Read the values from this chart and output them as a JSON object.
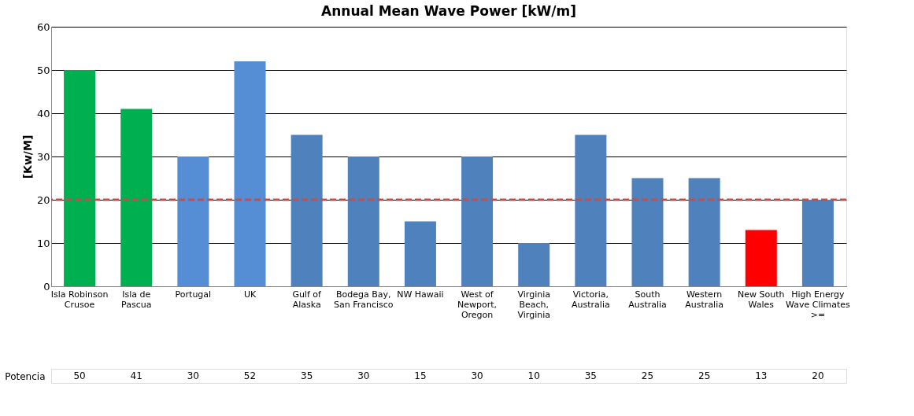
{
  "chart_data": {
    "type": "bar",
    "title": "Annual Mean Wave Power [kW/m]",
    "ylabel": "[Kw/M]",
    "categories": [
      "Isla Robinson Crusoe",
      "Isla de Pascua",
      "Portugal",
      "UK",
      "Gulf of Alaska",
      "Bodega Bay, San Francisco",
      "NW Hawaii",
      "West of Newport, Oregon",
      "Virginia Beach, Virginia",
      "Victoria, Australia",
      "South Australia",
      "Western Australia",
      "New South Wales",
      "High Energy Wave Climates >="
    ],
    "series": [
      {
        "name": "Potencia",
        "values": [
          50,
          41,
          30,
          52,
          35,
          30,
          15,
          30,
          10,
          35,
          25,
          25,
          13,
          20
        ],
        "colors": [
          "#00b050",
          "#00b050",
          "#558ed5",
          "#558ed5",
          "#4f81bd",
          "#4f81bd",
          "#4f81bd",
          "#4f81bd",
          "#4f81bd",
          "#4f81bd",
          "#4f81bd",
          "#4f81bd",
          "#ff0000",
          "#4f81bd"
        ]
      }
    ],
    "ylim": [
      0,
      60
    ],
    "yticks": [
      0,
      10,
      20,
      30,
      40,
      50,
      60
    ],
    "grid": "y",
    "data_labels": true,
    "ref_lines": [
      {
        "axis": "y",
        "value": 20,
        "color": "#c0504d",
        "line_style": "dashed"
      }
    ]
  }
}
